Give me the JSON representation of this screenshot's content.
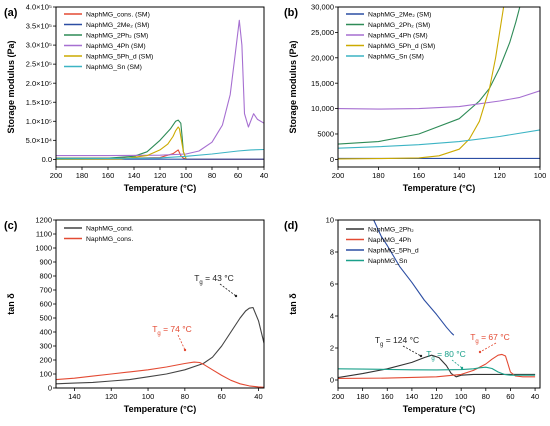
{
  "chart_data": [
    {
      "panel": "(a)",
      "type": "line",
      "xlabel": "Temperature (°C)",
      "ylabel": "Storage modulus (Pa)",
      "xlim": [
        200,
        40
      ],
      "ylim": [
        -20000,
        400000
      ],
      "xticks": [
        200,
        180,
        160,
        140,
        120,
        100,
        80,
        60,
        40
      ],
      "yticks": [
        0,
        50000,
        100000,
        150000,
        200000,
        250000,
        300000,
        350000,
        400000
      ],
      "ytick_labels": [
        "0.0",
        "5.0×10⁴",
        "1.0×10⁵",
        "1.5×10⁵",
        "2.0×10⁵",
        "2.5×10⁵",
        "3.0×10⁵",
        "3.5×10⁵",
        "4.0×10⁵"
      ],
      "legend_position": "top-left",
      "series": [
        {
          "name": "NaphMG_cons. (SM)",
          "color": "#e34a33",
          "x": [
            200,
            140,
            120,
            110,
            106,
            104,
            102,
            100,
            80,
            60,
            40
          ],
          "y": [
            3000,
            3500,
            5000,
            15000,
            25000,
            10000,
            3000,
            500,
            200,
            150,
            100
          ]
        },
        {
          "name": "NaphMG_2Me₂ (SM)",
          "color": "#2c4ea3",
          "x": [
            200,
            160,
            140,
            120,
            100,
            80,
            60,
            40
          ],
          "y": [
            500,
            500,
            500,
            500,
            500,
            500,
            500,
            500
          ]
        },
        {
          "name": "NaphMG_2Ph₂ (SM)",
          "color": "#2e8b57",
          "x": [
            200,
            160,
            140,
            130,
            120,
            112,
            108,
            106,
            104,
            103,
            102,
            100
          ],
          "y": [
            3000,
            3000,
            8000,
            20000,
            50000,
            80000,
            100000,
            103000,
            95000,
            60000,
            20000,
            2000
          ]
        },
        {
          "name": "NaphMG_4Ph (SM)",
          "color": "#a66fd1",
          "x": [
            200,
            160,
            120,
            100,
            90,
            80,
            72,
            66,
            62,
            59,
            57,
            55,
            52,
            48,
            45,
            40
          ],
          "y": [
            10000,
            10000,
            11000,
            14000,
            22000,
            45000,
            90000,
            170000,
            280000,
            365000,
            300000,
            120000,
            85000,
            120000,
            105000,
            95000
          ]
        },
        {
          "name": "NaphMG_5Ph_d (SM)",
          "color": "#ccaa00",
          "x": [
            200,
            150,
            130,
            120,
            114,
            110,
            108,
            106,
            105,
            104,
            102,
            100
          ],
          "y": [
            200,
            1000,
            10000,
            25000,
            40000,
            60000,
            75000,
            85000,
            80000,
            60000,
            20000,
            2000
          ]
        },
        {
          "name": "NaphMG_Sn (SM)",
          "color": "#3cb4c4",
          "x": [
            200,
            160,
            120,
            100,
            80,
            60,
            50,
            40
          ],
          "y": [
            1500,
            2200,
            4000,
            8000,
            14000,
            22000,
            25000,
            26000
          ]
        }
      ]
    },
    {
      "panel": "(b)",
      "type": "line",
      "xlabel": "Temperature (°C)",
      "ylabel": "Storage modulus (Pa)",
      "xlim": [
        200,
        100
      ],
      "ylim": [
        -1500,
        30000
      ],
      "xticks": [
        200,
        180,
        160,
        140,
        120,
        100
      ],
      "yticks": [
        0,
        5000,
        10000,
        15000,
        20000,
        25000,
        30000
      ],
      "ytick_labels": [
        "0",
        "5000",
        "10,000",
        "15,000",
        "20,000",
        "25,000",
        "30,000"
      ],
      "legend_position": "top-left",
      "series": [
        {
          "name": "NaphMG_2Me₂ (SM)",
          "color": "#2c4ea3",
          "x": [
            200,
            150,
            100
          ],
          "y": [
            200,
            200,
            200
          ]
        },
        {
          "name": "NaphMG_2Ph₂ (SM)",
          "color": "#2e8b57",
          "x": [
            200,
            180,
            160,
            140,
            130,
            125,
            120,
            115,
            112,
            110
          ],
          "y": [
            3000,
            3500,
            5000,
            8000,
            11500,
            14000,
            18000,
            23000,
            27000,
            30000
          ]
        },
        {
          "name": "NaphMG_4Ph (SM)",
          "color": "#a66fd1",
          "x": [
            200,
            180,
            160,
            140,
            120,
            110,
            100
          ],
          "y": [
            10000,
            9900,
            10000,
            10400,
            11500,
            12200,
            13500
          ]
        },
        {
          "name": "NaphMG_5Ph_d (SM)",
          "color": "#ccaa00",
          "x": [
            200,
            180,
            160,
            150,
            140,
            135,
            130,
            125,
            122,
            120,
            118
          ],
          "y": [
            100,
            150,
            300,
            700,
            2000,
            4000,
            7500,
            14000,
            20000,
            25000,
            30000
          ]
        },
        {
          "name": "NaphMG_Sn (SM)",
          "color": "#3cb4c4",
          "x": [
            200,
            180,
            160,
            140,
            120,
            100
          ],
          "y": [
            2200,
            2500,
            2900,
            3500,
            4500,
            5800
          ]
        }
      ]
    },
    {
      "panel": "(c)",
      "type": "line",
      "xlabel": "Temperature (°C)",
      "ylabel": "tan δ",
      "xlim": [
        150,
        37
      ],
      "ylim": [
        0,
        1200
      ],
      "xticks": [
        140,
        120,
        100,
        80,
        60,
        40
      ],
      "yticks": [
        0,
        100,
        200,
        300,
        400,
        500,
        600,
        700,
        800,
        900,
        1000,
        1100,
        1200
      ],
      "legend_position": "top-left",
      "annotations": [
        {
          "text": "T",
          "sub": "g",
          "rest": " = 43 °C",
          "color": "#222222",
          "at": [
            45,
            575
          ]
        },
        {
          "text": "T",
          "sub": "g",
          "rest": " = 74 °C",
          "color": "#e34a33",
          "at": [
            74,
            185
          ]
        }
      ],
      "series": [
        {
          "name": "NaphMG_cond.",
          "color": "#444444",
          "x": [
            150,
            140,
            130,
            120,
            110,
            100,
            90,
            80,
            70,
            65,
            60,
            55,
            50,
            47,
            45,
            43,
            40,
            37
          ],
          "y": [
            30,
            35,
            40,
            50,
            60,
            80,
            100,
            130,
            175,
            220,
            300,
            400,
            500,
            550,
            570,
            575,
            480,
            320
          ]
        },
        {
          "name": "NaphMG_cons.",
          "color": "#e34a33",
          "x": [
            150,
            140,
            130,
            120,
            110,
            100,
            90,
            80,
            75,
            72,
            70,
            65,
            60,
            55,
            50,
            45,
            40,
            37
          ],
          "y": [
            60,
            70,
            85,
            100,
            115,
            130,
            150,
            175,
            185,
            182,
            170,
            130,
            90,
            55,
            30,
            15,
            8,
            5
          ]
        }
      ]
    },
    {
      "panel": "(d)",
      "type": "line",
      "xlabel": "Temperature (°C)",
      "ylabel": "tan δ",
      "xlim": [
        200,
        36
      ],
      "ylim": [
        -0.5,
        10
      ],
      "xticks": [
        200,
        180,
        160,
        140,
        120,
        100,
        80,
        60,
        40
      ],
      "yticks": [
        0,
        2,
        4,
        6,
        8,
        10
      ],
      "legend_position": "top-left",
      "annotations": [
        {
          "text": "T",
          "sub": "g",
          "rest": " = 124 °C",
          "color": "#222222",
          "at": [
            124,
            1.6
          ]
        },
        {
          "text": "T",
          "sub": "g",
          "rest": " = 80 °C",
          "color": "#1aa08a",
          "at": [
            80,
            0.8
          ]
        },
        {
          "text": "T",
          "sub": "g",
          "rest": " = 67 °C",
          "color": "#e34a33",
          "at": [
            67,
            1.6
          ]
        }
      ],
      "series": [
        {
          "name": "NaphMG_2Ph₂",
          "color": "#333333",
          "x": [
            200,
            180,
            160,
            140,
            130,
            124,
            118,
            112,
            108,
            104,
            100,
            90,
            80,
            60,
            40
          ],
          "y": [
            0.15,
            0.4,
            0.7,
            1.1,
            1.4,
            1.55,
            1.4,
            0.9,
            0.4,
            0.2,
            0.3,
            0.35,
            0.35,
            0.35,
            0.35
          ]
        },
        {
          "name": "NaphMG_4Ph",
          "color": "#e34a33",
          "x": [
            200,
            160,
            120,
            100,
            90,
            80,
            75,
            70,
            67,
            64,
            62,
            60,
            56,
            50,
            40
          ],
          "y": [
            0.1,
            0.12,
            0.2,
            0.35,
            0.6,
            1.0,
            1.3,
            1.55,
            1.6,
            1.5,
            1.0,
            0.5,
            0.25,
            0.2,
            0.2
          ]
        },
        {
          "name": "NaphMG_5Ph_d",
          "color": "#2c4ea3",
          "x": [
            171,
            165,
            160,
            150,
            140,
            130,
            120,
            112,
            108,
            106
          ],
          "y": [
            10,
            9,
            8.4,
            7.1,
            6.1,
            5.0,
            4.1,
            3.3,
            2.95,
            2.8
          ]
        },
        {
          "name": "NaphMG_Sn",
          "color": "#1aa08a",
          "x": [
            200,
            180,
            160,
            140,
            120,
            100,
            90,
            85,
            80,
            75,
            70,
            65,
            60,
            50,
            40
          ],
          "y": [
            0.7,
            0.68,
            0.66,
            0.64,
            0.63,
            0.65,
            0.7,
            0.76,
            0.8,
            0.72,
            0.5,
            0.35,
            0.3,
            0.3,
            0.3
          ]
        }
      ]
    }
  ],
  "panel_layout": [
    {
      "plot": [
        56,
        7,
        264,
        167
      ]
    },
    {
      "plot": [
        338,
        7,
        540,
        167
      ]
    },
    {
      "plot": [
        56,
        220,
        264,
        388
      ]
    },
    {
      "plot": [
        338,
        220,
        540,
        388
      ]
    }
  ]
}
